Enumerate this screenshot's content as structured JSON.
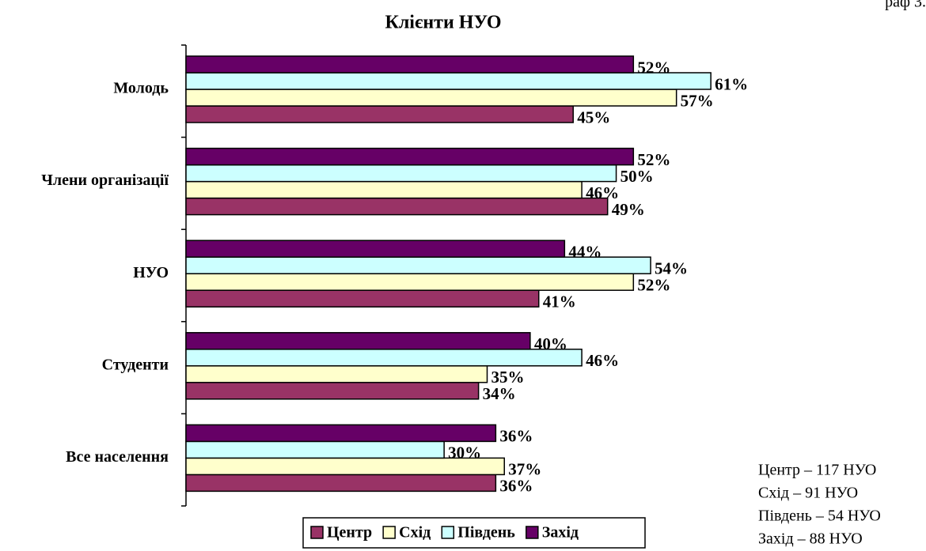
{
  "chart_data": {
    "type": "barh",
    "title": "Клієнти НУО",
    "corner_text": "раф 3.",
    "categories": [
      "Молодь",
      "Члени організації",
      "НУО",
      "Студенти",
      "Все населення"
    ],
    "series": [
      {
        "name": "Центр",
        "color": "#993366",
        "values": [
          45,
          49,
          41,
          34,
          36
        ],
        "value_labels": [
          "45%",
          "49%",
          "41%",
          "34%",
          "36%"
        ]
      },
      {
        "name": "Схід",
        "color": "#ffffcc",
        "values": [
          57,
          46,
          52,
          35,
          37
        ],
        "value_labels": [
          "57%",
          "46%",
          "52%",
          "35%",
          "37%"
        ]
      },
      {
        "name": "Південь",
        "color": "#ccffff",
        "values": [
          61,
          50,
          54,
          46,
          30
        ],
        "value_labels": [
          "61%",
          "50%",
          "54%",
          "46%",
          "30%"
        ]
      },
      {
        "name": "Захід",
        "color": "#660066",
        "values": [
          52,
          52,
          44,
          40,
          36
        ],
        "value_labels": [
          "52%",
          "52%",
          "44%",
          "40%",
          "36%"
        ]
      }
    ],
    "xlim": [
      0,
      70
    ],
    "notes": [
      "Центр – 117 НУО",
      "Схід – 91 НУО",
      "Південь – 54 НУО",
      "Захід – 88 НУО"
    ]
  }
}
